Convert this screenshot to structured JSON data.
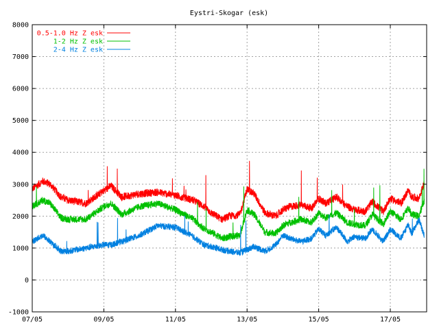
{
  "chart_data": {
    "type": "line",
    "title": "Eystri-Skogar (esk)",
    "xlabel": "",
    "ylabel": "",
    "ylim": [
      -1000,
      8000
    ],
    "yticks": [
      -1000,
      0,
      1000,
      2000,
      3000,
      4000,
      5000,
      6000,
      7000,
      8000
    ],
    "xlim_days": [
      0,
      11.5
    ],
    "xticks": [
      {
        "day": 0,
        "label": "07/05"
      },
      {
        "day": 2,
        "label": "09/05"
      },
      {
        "day": 4,
        "label": "11/05"
      },
      {
        "day": 6,
        "label": "13/05"
      },
      {
        "day": 8,
        "label": "15/05"
      },
      {
        "day": 10,
        "label": "17/05"
      }
    ],
    "grid": true,
    "legend_position": "top-left",
    "series": [
      {
        "name": "0.5-1.0 Hz Z esk",
        "color": "#ff0000",
        "noise": 120,
        "x": [
          0,
          0.3,
          0.5,
          0.8,
          1.0,
          1.5,
          2.0,
          2.2,
          2.5,
          3.0,
          3.5,
          4.0,
          4.5,
          4.8,
          5.0,
          5.3,
          5.5,
          5.8,
          6.0,
          6.2,
          6.5,
          6.8,
          7.0,
          7.2,
          7.5,
          7.8,
          8.0,
          8.2,
          8.5,
          8.8,
          9.0,
          9.3,
          9.5,
          9.8,
          10.0,
          10.3,
          10.5,
          10.6,
          10.8,
          10.95
        ],
        "y": [
          2850,
          3100,
          3000,
          2600,
          2500,
          2400,
          2800,
          2950,
          2600,
          2700,
          2750,
          2650,
          2500,
          2300,
          2100,
          1900,
          2000,
          2050,
          2850,
          2700,
          2100,
          2000,
          2200,
          2300,
          2350,
          2250,
          2550,
          2400,
          2600,
          2300,
          2200,
          2150,
          2450,
          2150,
          2550,
          2400,
          2800,
          2600,
          2550,
          3050
        ]
      },
      {
        "name": "1-2 Hz Z esk",
        "color": "#00c000",
        "noise": 110,
        "x": [
          0,
          0.3,
          0.5,
          0.8,
          1.0,
          1.5,
          2.0,
          2.2,
          2.5,
          3.0,
          3.5,
          4.0,
          4.5,
          4.8,
          5.0,
          5.3,
          5.5,
          5.8,
          6.0,
          6.2,
          6.5,
          6.8,
          7.0,
          7.2,
          7.5,
          7.8,
          8.0,
          8.2,
          8.5,
          8.8,
          9.0,
          9.3,
          9.5,
          9.8,
          10.0,
          10.3,
          10.5,
          10.6,
          10.8,
          10.95
        ],
        "y": [
          2300,
          2500,
          2400,
          1950,
          1900,
          1900,
          2300,
          2400,
          2050,
          2300,
          2400,
          2200,
          1900,
          1600,
          1500,
          1300,
          1350,
          1400,
          2200,
          2050,
          1500,
          1450,
          1700,
          1800,
          1900,
          1800,
          2100,
          1950,
          2100,
          1800,
          1750,
          1700,
          2050,
          1750,
          2150,
          1900,
          2250,
          2050,
          2000,
          2500
        ]
      },
      {
        "name": "2-4 Hz Z esk",
        "color": "#0080e0",
        "noise": 100,
        "x": [
          0,
          0.3,
          0.5,
          0.8,
          1.0,
          1.5,
          2.0,
          2.2,
          2.5,
          3.0,
          3.5,
          4.0,
          4.5,
          4.8,
          5.0,
          5.3,
          5.5,
          5.8,
          6.0,
          6.2,
          6.5,
          6.8,
          7.0,
          7.2,
          7.5,
          7.8,
          8.0,
          8.2,
          8.5,
          8.8,
          9.0,
          9.3,
          9.5,
          9.8,
          10.0,
          10.3,
          10.5,
          10.6,
          10.8,
          10.95
        ],
        "y": [
          1200,
          1400,
          1200,
          900,
          900,
          1000,
          1100,
          1100,
          1200,
          1400,
          1700,
          1650,
          1350,
          1100,
          1050,
          950,
          900,
          850,
          950,
          1050,
          900,
          1100,
          1400,
          1300,
          1200,
          1300,
          1600,
          1400,
          1650,
          1200,
          1350,
          1300,
          1600,
          1200,
          1600,
          1300,
          1750,
          1450,
          1900,
          1400
        ]
      }
    ]
  }
}
